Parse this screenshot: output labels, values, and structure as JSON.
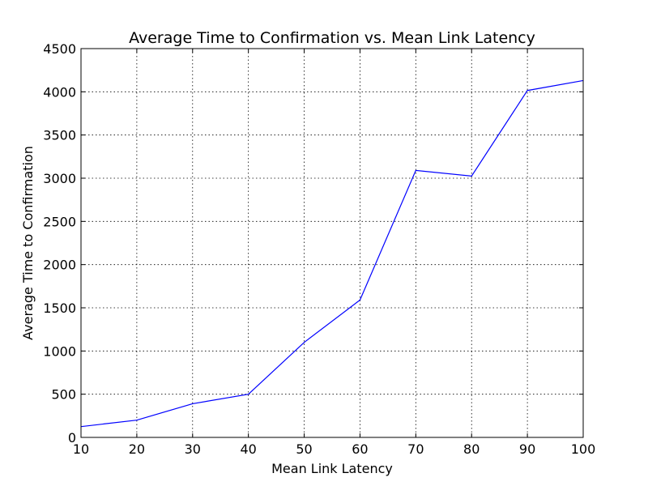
{
  "chart_data": {
    "type": "line",
    "title": "Average Time to Confirmation vs. Mean Link Latency",
    "xlabel": "Mean Link Latency",
    "ylabel": "Average Time to Confirmation",
    "xlim": [
      10,
      100
    ],
    "ylim": [
      0,
      4500
    ],
    "xticks": [
      10,
      20,
      30,
      40,
      50,
      60,
      70,
      80,
      90,
      100
    ],
    "yticks": [
      0,
      500,
      1000,
      1500,
      2000,
      2500,
      3000,
      3500,
      4000,
      4500
    ],
    "grid": true,
    "series": [
      {
        "color": "#0000ff",
        "x": [
          10,
          20,
          30,
          40,
          50,
          60,
          70,
          80,
          90,
          100
        ],
        "y": [
          125,
          200,
          390,
          500,
          1100,
          1590,
          3090,
          3025,
          4015,
          4130
        ]
      }
    ]
  }
}
